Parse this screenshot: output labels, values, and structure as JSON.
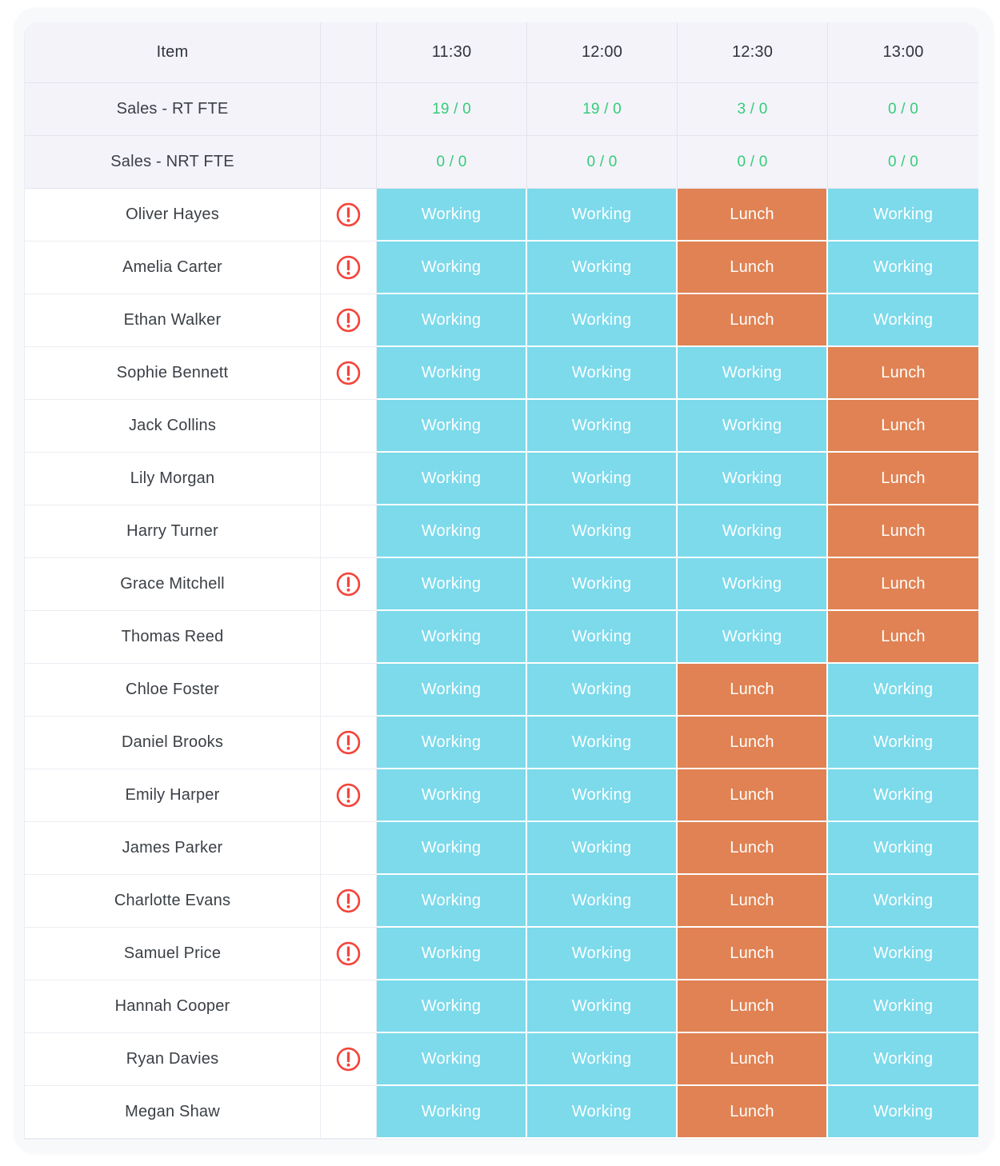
{
  "colors": {
    "working_cell": "#7CDAEB",
    "lunch_cell": "#E08253",
    "summary_value_green": "#34CD78",
    "warning_red": "#F4453B",
    "header_bg": "#F4F3FA"
  },
  "table": {
    "columns": [
      "Item",
      "",
      "11:30",
      "12:00",
      "12:30",
      "13:00"
    ],
    "summary_rows": [
      {
        "label": "Sales - RT FTE",
        "values": [
          "19 / 0",
          "19 / 0",
          "3 / 0",
          "0 / 0"
        ]
      },
      {
        "label": "Sales - NRT FTE",
        "values": [
          "0 / 0",
          "0 / 0",
          "0 / 0",
          "0 / 0"
        ]
      }
    ],
    "employees": [
      {
        "name": "Oliver Hayes",
        "warning": true,
        "slots": [
          "Working",
          "Working",
          "Lunch",
          "Working"
        ]
      },
      {
        "name": "Amelia Carter",
        "warning": true,
        "slots": [
          "Working",
          "Working",
          "Lunch",
          "Working"
        ]
      },
      {
        "name": "Ethan Walker",
        "warning": true,
        "slots": [
          "Working",
          "Working",
          "Lunch",
          "Working"
        ]
      },
      {
        "name": "Sophie Bennett",
        "warning": true,
        "slots": [
          "Working",
          "Working",
          "Working",
          "Lunch"
        ]
      },
      {
        "name": "Jack Collins",
        "warning": false,
        "slots": [
          "Working",
          "Working",
          "Working",
          "Lunch"
        ]
      },
      {
        "name": "Lily Morgan",
        "warning": false,
        "slots": [
          "Working",
          "Working",
          "Working",
          "Lunch"
        ]
      },
      {
        "name": "Harry Turner",
        "warning": false,
        "slots": [
          "Working",
          "Working",
          "Working",
          "Lunch"
        ]
      },
      {
        "name": "Grace Mitchell",
        "warning": true,
        "slots": [
          "Working",
          "Working",
          "Working",
          "Lunch"
        ]
      },
      {
        "name": "Thomas Reed",
        "warning": false,
        "slots": [
          "Working",
          "Working",
          "Working",
          "Lunch"
        ]
      },
      {
        "name": "Chloe Foster",
        "warning": false,
        "slots": [
          "Working",
          "Working",
          "Lunch",
          "Working"
        ]
      },
      {
        "name": "Daniel Brooks",
        "warning": true,
        "slots": [
          "Working",
          "Working",
          "Lunch",
          "Working"
        ]
      },
      {
        "name": "Emily Harper",
        "warning": true,
        "slots": [
          "Working",
          "Working",
          "Lunch",
          "Working"
        ]
      },
      {
        "name": "James Parker",
        "warning": false,
        "slots": [
          "Working",
          "Working",
          "Lunch",
          "Working"
        ]
      },
      {
        "name": "Charlotte Evans",
        "warning": true,
        "slots": [
          "Working",
          "Working",
          "Lunch",
          "Working"
        ]
      },
      {
        "name": "Samuel Price",
        "warning": true,
        "slots": [
          "Working",
          "Working",
          "Lunch",
          "Working"
        ]
      },
      {
        "name": "Hannah Cooper",
        "warning": false,
        "slots": [
          "Working",
          "Working",
          "Lunch",
          "Working"
        ]
      },
      {
        "name": "Ryan Davies",
        "warning": true,
        "slots": [
          "Working",
          "Working",
          "Lunch",
          "Working"
        ]
      },
      {
        "name": "Megan Shaw",
        "warning": false,
        "slots": [
          "Working",
          "Working",
          "Lunch",
          "Working"
        ]
      }
    ]
  }
}
